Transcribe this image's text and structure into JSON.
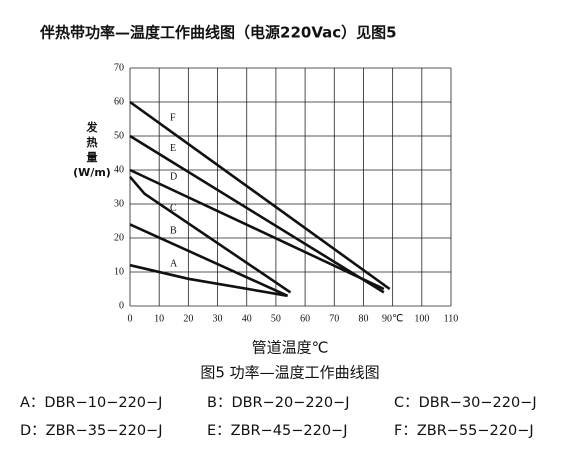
{
  "chart_data": {
    "type": "line",
    "title": "伴热带功率—温度工作曲线图（电源220Vac）见图5",
    "x_label": "管道温度℃",
    "y_label": [
      "发",
      "热",
      "量",
      "(W/m)"
    ],
    "caption": "图5 功率—温度工作曲线图",
    "legend": [
      [
        "A：DBR−10−220−J",
        "B：DBR−20−220−J",
        "C：DBR−30−220−J"
      ],
      [
        "D：ZBR−35−220−J",
        "E：ZBR−45−220−J",
        "F：ZBR−55−220−J"
      ]
    ],
    "xlim": [
      0,
      110
    ],
    "ylim": [
      0,
      70
    ],
    "xticks": [
      0,
      10,
      20,
      30,
      40,
      50,
      60,
      70,
      80,
      {
        "value": 90,
        "label": "90℃"
      },
      100,
      110
    ],
    "yticks": [
      0,
      10,
      20,
      30,
      40,
      50,
      60,
      70
    ],
    "grid": true,
    "series": [
      {
        "name": "A",
        "color": "#111111",
        "x": [
          0,
          20,
          54
        ],
        "values": [
          12,
          8,
          3
        ]
      },
      {
        "name": "B",
        "color": "#111111",
        "x": [
          0,
          54
        ],
        "values": [
          24,
          3
        ]
      },
      {
        "name": "C",
        "color": "#111111",
        "x": [
          0,
          5,
          55
        ],
        "values": [
          38,
          33,
          4
        ]
      },
      {
        "name": "D",
        "color": "#111111",
        "x": [
          0,
          87
        ],
        "values": [
          40,
          5
        ]
      },
      {
        "name": "E",
        "color": "#111111",
        "x": [
          0,
          87
        ],
        "values": [
          50,
          4
        ]
      },
      {
        "name": "F",
        "color": "#111111",
        "x": [
          0,
          89
        ],
        "values": [
          60,
          5
        ]
      }
    ]
  }
}
